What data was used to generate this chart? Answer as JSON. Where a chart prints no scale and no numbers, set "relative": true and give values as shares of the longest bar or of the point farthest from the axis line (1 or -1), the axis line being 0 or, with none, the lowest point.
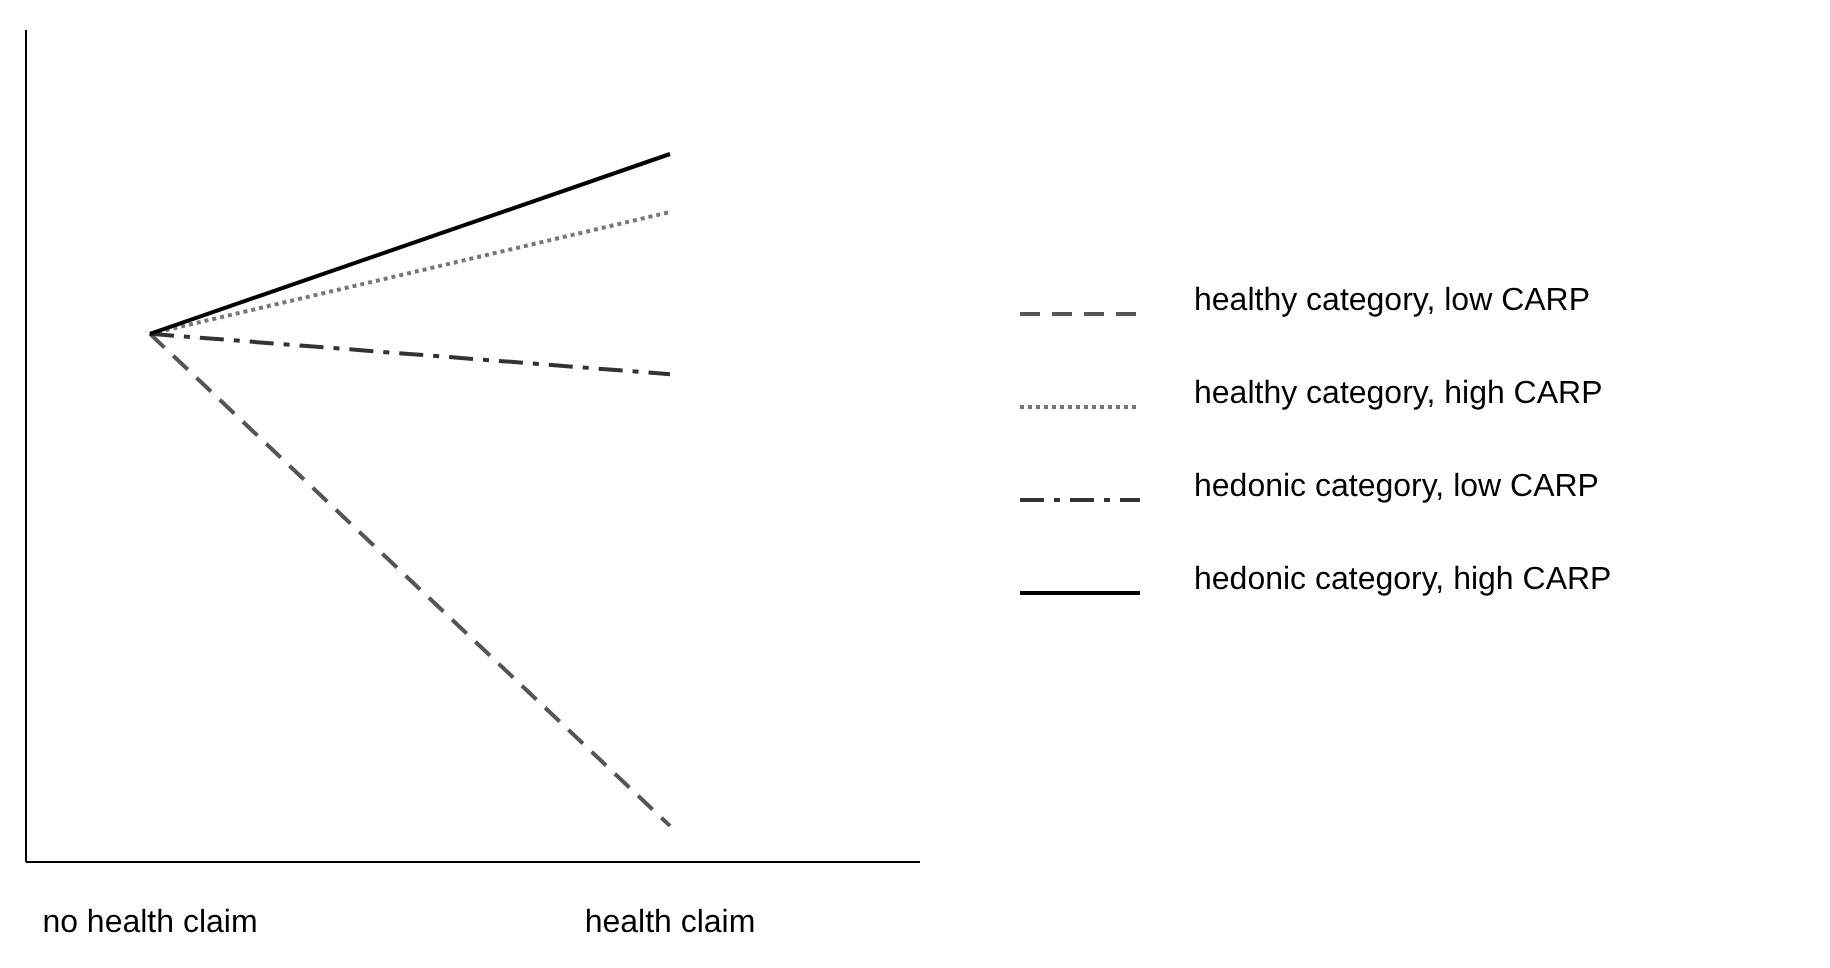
{
  "chart_data": {
    "type": "line",
    "relative": true,
    "categories": [
      "no health claim",
      "health claim"
    ],
    "legend": "right",
    "marker": "none",
    "series": [
      {
        "name": "healthy category, low CARP",
        "color": "#555555",
        "line_style": "dashed",
        "values": [
          0.746,
          0.051
        ]
      },
      {
        "name": "healthy category, high CARP",
        "color": "#777777",
        "line_style": "dotted",
        "values": [
          0.746,
          0.918
        ]
      },
      {
        "name": "hedonic category, low CARP",
        "color": "#333333",
        "line_style": "dashdot",
        "values": [
          0.746,
          0.689
        ]
      },
      {
        "name": "hedonic category, high CARP",
        "color": "#000000",
        "line_style": "solid",
        "values": [
          0.746,
          1
        ]
      }
    ]
  }
}
